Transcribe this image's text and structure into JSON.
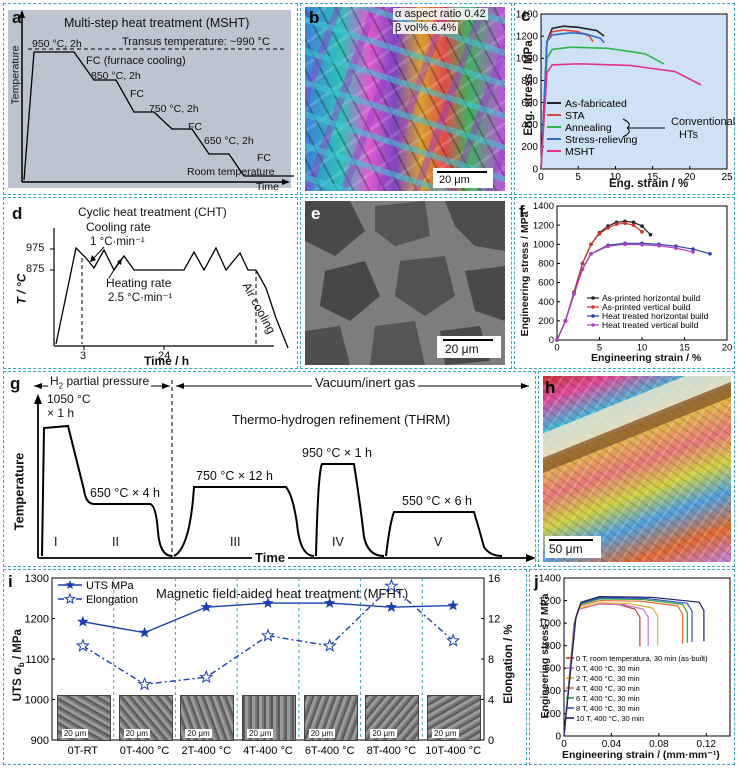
{
  "panel_a": {
    "label": "a",
    "title": "Multi-step heat treatment (MSHT)",
    "ylabel": "Temperature",
    "xlabel": "Time",
    "transus": "Transus temperature: ~990 °C",
    "steps": [
      "950 °C, 2h",
      "850 °C, 2h",
      "750 °C, 2h",
      "650 °C, 2h"
    ],
    "fc_main": "FC (furnace cooling)",
    "fc": "FC",
    "room": "Room temperature"
  },
  "panel_b": {
    "label": "b",
    "aspect": "α aspect ratio 0.42",
    "beta": "β vol% 6.4%",
    "scale": "20 μm"
  },
  "panel_c": {
    "label": "c",
    "ylabel": "Eng. stress / MPa",
    "xlabel": "Eng. strain / %",
    "legend_group": "Conventional",
    "legend_group2": "HTs",
    "chart_data": {
      "type": "line",
      "xlim": [
        0,
        25
      ],
      "ylim": [
        0,
        1400
      ],
      "xticks": [
        0,
        5,
        10,
        15,
        20,
        25
      ],
      "yticks": [
        0,
        200,
        400,
        600,
        800,
        1000,
        1200,
        1400
      ],
      "series": [
        {
          "name": "As-fabricated",
          "color": "#222222",
          "x": [
            0,
            0.8,
            1.5,
            3,
            5,
            7.5,
            8.5
          ],
          "y": [
            0,
            1150,
            1270,
            1290,
            1280,
            1250,
            1200
          ]
        },
        {
          "name": "STA",
          "color": "#e4493f",
          "x": [
            0,
            0.8,
            1.5,
            3,
            5,
            6.5,
            7
          ],
          "y": [
            0,
            1150,
            1240,
            1255,
            1240,
            1200,
            1150
          ]
        },
        {
          "name": "Annealing",
          "color": "#2fb84a",
          "x": [
            0,
            0.8,
            1.5,
            4,
            9,
            14,
            16.5
          ],
          "y": [
            0,
            1000,
            1080,
            1100,
            1090,
            1040,
            950
          ]
        },
        {
          "name": "Stress-relieving",
          "color": "#2b6fd6",
          "x": [
            0,
            0.8,
            1.5,
            4,
            6,
            8,
            8.5
          ],
          "y": [
            0,
            1150,
            1210,
            1230,
            1220,
            1180,
            1140
          ]
        },
        {
          "name": "MSHT",
          "color": "#e0338a",
          "x": [
            0,
            0.8,
            1.5,
            5,
            12,
            18,
            21.5
          ],
          "y": [
            0,
            870,
            940,
            950,
            935,
            880,
            760
          ]
        }
      ]
    }
  },
  "panel_d": {
    "label": "d",
    "title": "Cyclic heat treatment (CHT)",
    "cooling": "Cooling rate",
    "cooling_rate": "1 °C·min⁻¹",
    "heating": "Heating rate",
    "heating_rate": "2.5 °C·min⁻¹",
    "air": "Air cooling",
    "ylabel": "T / °C",
    "xlabel": "Time / h",
    "yticks": [
      "975",
      "875"
    ],
    "xticks": [
      "3",
      "24"
    ]
  },
  "panel_e": {
    "label": "e",
    "scale": "20 μm"
  },
  "panel_f": {
    "label": "f",
    "ylabel": "Engineering stress / MPa",
    "xlabel": "Engineering strain / %",
    "chart_data": {
      "type": "line",
      "xlim": [
        0,
        20
      ],
      "ylim": [
        0,
        1400
      ],
      "xticks": [
        0,
        5,
        10,
        15,
        20
      ],
      "yticks": [
        0,
        200,
        400,
        600,
        800,
        1000,
        1200,
        1400
      ],
      "series": [
        {
          "name": "As-printed horizontal build",
          "color": "#222222",
          "marker": "square",
          "x": [
            0,
            1,
            2,
            3,
            4,
            5,
            6,
            7,
            8,
            9,
            10,
            11
          ],
          "y": [
            0,
            200,
            500,
            800,
            1000,
            1120,
            1190,
            1230,
            1240,
            1230,
            1190,
            1100
          ]
        },
        {
          "name": "As-printed vertical build",
          "color": "#d0342c",
          "marker": "circle",
          "x": [
            0,
            1,
            2,
            3,
            4,
            5,
            6,
            7,
            8,
            9,
            10
          ],
          "y": [
            0,
            200,
            500,
            800,
            1000,
            1110,
            1170,
            1210,
            1220,
            1200,
            1130
          ]
        },
        {
          "name": "Heat treated horizontal build",
          "color": "#2b3fb0",
          "marker": "triangle",
          "x": [
            0,
            1,
            2,
            3,
            4,
            6,
            8,
            10,
            12,
            14,
            16,
            18
          ],
          "y": [
            0,
            200,
            480,
            740,
            900,
            990,
            1010,
            1010,
            1000,
            980,
            950,
            900
          ]
        },
        {
          "name": "Heat treated vertical build",
          "color": "#b03fc0",
          "marker": "diamond",
          "x": [
            0,
            1,
            2,
            3,
            4,
            6,
            8,
            10,
            12,
            14,
            16
          ],
          "y": [
            0,
            200,
            480,
            740,
            900,
            980,
            1000,
            995,
            985,
            960,
            920
          ]
        }
      ]
    }
  },
  "panel_g": {
    "label": "g",
    "h2": "H",
    "h2_sub": "2",
    "h2_rest": " partial pressure",
    "vacuum": "Vacuum/inert gas",
    "thrm": "Thermo-hydrogen refinement (THRM)",
    "ylabel": "Temperature",
    "xlabel": "Time",
    "step1_a": "1050 °C",
    "step1_b": "× 1 h",
    "step2": "650 °C × 4 h",
    "step3": "750 °C × 12 h",
    "step4": "950 °C × 1 h",
    "step5": "550 °C × 6 h",
    "stages": [
      "I",
      "II",
      "III",
      "IV",
      "V"
    ]
  },
  "panel_h": {
    "label": "h",
    "scale": "50 μm"
  },
  "panel_i": {
    "label": "i",
    "title": "Magnetic field-aided heat treatment (MFHT)",
    "ylabel_left": "UTS σb / MPa",
    "ylabel_left_main": "UTS σ",
    "ylabel_left_sub": "b",
    "ylabel_left_unit": " / MPa",
    "ylabel_right": "Elongation / %",
    "micro_scale": "20 μm",
    "chart_data": {
      "type": "line",
      "categories": [
        "0T-RT",
        "0T-400 °C",
        "2T-400 °C",
        "4T-400 °C",
        "6T-400 °C",
        "8T-400 °C",
        "10T-400 °C"
      ],
      "ylim_left": [
        900,
        1300
      ],
      "yticks_left": [
        900,
        1000,
        1100,
        1200,
        1300
      ],
      "ylim_right": [
        0,
        16
      ],
      "yticks_right": [
        0,
        4,
        8,
        12,
        16
      ],
      "series": [
        {
          "name": "UTS MPa",
          "axis": "left",
          "color": "#1a3fb0",
          "values": [
            1192,
            1165,
            1228,
            1238,
            1238,
            1228,
            1232
          ]
        },
        {
          "name": "Elongation",
          "axis": "right",
          "color": "#1a3fb0",
          "values": [
            9.3,
            5.5,
            6.2,
            10.3,
            9.3,
            15.2,
            9.8
          ]
        }
      ]
    }
  },
  "panel_j": {
    "label": "j",
    "ylabel": "Engineering stress / MPa",
    "xlabel": "Engineering strain / (mm·mm⁻¹)",
    "chart_data": {
      "type": "line",
      "xlim": [
        0,
        0.14
      ],
      "ylim": [
        0,
        1400
      ],
      "xticks": [
        0,
        0.04,
        0.08,
        0.12
      ],
      "yticks": [
        0,
        200,
        400,
        600,
        800,
        1000,
        1200,
        1400
      ],
      "series": [
        {
          "name": "0 T, room temperatura, 30 min (as-built)",
          "color": "#b04040",
          "peak": 1170,
          "fracture": 0.064
        },
        {
          "name": "0 T, 400 °C, 30 min",
          "color": "#d070d0",
          "peak": 1170,
          "fracture": 0.071
        },
        {
          "name": "2 T, 400 °C, 30 min",
          "color": "#e0b030",
          "peak": 1180,
          "fracture": 0.079
        },
        {
          "name": "4 T, 400 °C, 30 min",
          "color": "#e07030",
          "peak": 1200,
          "fracture": 0.1
        },
        {
          "name": "6 T, 400 °C, 30 min",
          "color": "#30a040",
          "peak": 1215,
          "fracture": 0.104
        },
        {
          "name": "8 T, 400 °C, 30 min",
          "color": "#3050d0",
          "peak": 1225,
          "fracture": 0.108
        },
        {
          "name": "10 T, 400 °C, 30 min",
          "color": "#202060",
          "peak": 1235,
          "fracture": 0.118
        }
      ]
    }
  }
}
